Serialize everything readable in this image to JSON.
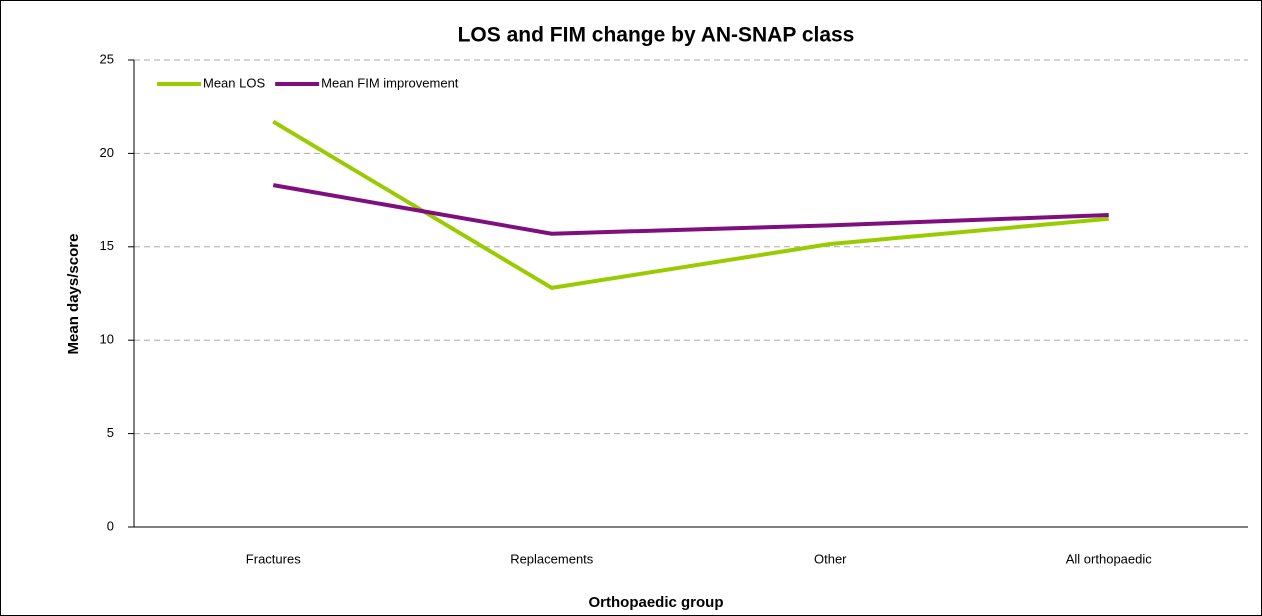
{
  "chart_data": {
    "type": "line",
    "title": "LOS and FIM change by AN-SNAP class",
    "x_label": "Orthopaedic group",
    "y_label": "Mean days/score",
    "categories": [
      "Fractures",
      "Replacements",
      "Other",
      "All orthopaedic"
    ],
    "series": [
      {
        "name": "Mean LOS",
        "color": "#99cc00",
        "values": [
          21.7,
          12.8,
          15.15,
          16.5
        ]
      },
      {
        "name": "Mean FIM improvement",
        "color": "#7f0f7e",
        "values": [
          18.3,
          15.7,
          16.15,
          16.7
        ]
      }
    ],
    "ylim": [
      0,
      25
    ],
    "yticks": [
      0,
      5,
      10,
      15,
      20,
      25
    ],
    "grid": true,
    "legend": "top-left"
  }
}
